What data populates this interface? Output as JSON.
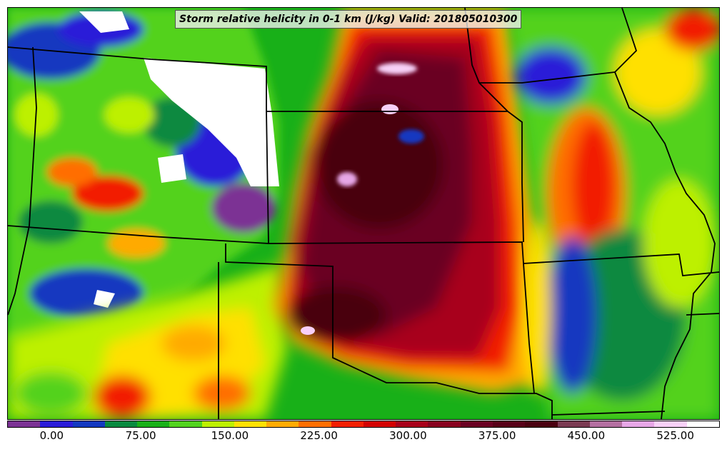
{
  "title": "Storm relative helicity in 0-1 km (J/kg) Valid: 201805010300",
  "map": {
    "variable": "Storm relative helicity in 0-1 km",
    "units": "J/kg",
    "valid_time": "201805010300"
  },
  "colorbar": {
    "colors": [
      "#7b3294",
      "#2a1bd8",
      "#1238c0",
      "#07893f",
      "#18b018",
      "#52d21e",
      "#bdf000",
      "#ffe000",
      "#ffaa00",
      "#ff6e00",
      "#f21e00",
      "#d20000",
      "#a8001a",
      "#88001e",
      "#6a0022",
      "#580018",
      "#4a0010",
      "#7a3a52",
      "#b46fa1",
      "#e6a6e6",
      "#f7d0f7",
      "#ffffff"
    ],
    "tick_labels": [
      "0.00",
      "75.00",
      "150.00",
      "225.00",
      "300.00",
      "375.00",
      "450.00",
      "525.00"
    ],
    "tick_values": [
      0,
      75,
      150,
      225,
      300,
      375,
      450,
      525
    ],
    "min": -37.5,
    "max": 562.5
  },
  "icons": [
    "state-boundaries",
    "helicity-shading"
  ]
}
